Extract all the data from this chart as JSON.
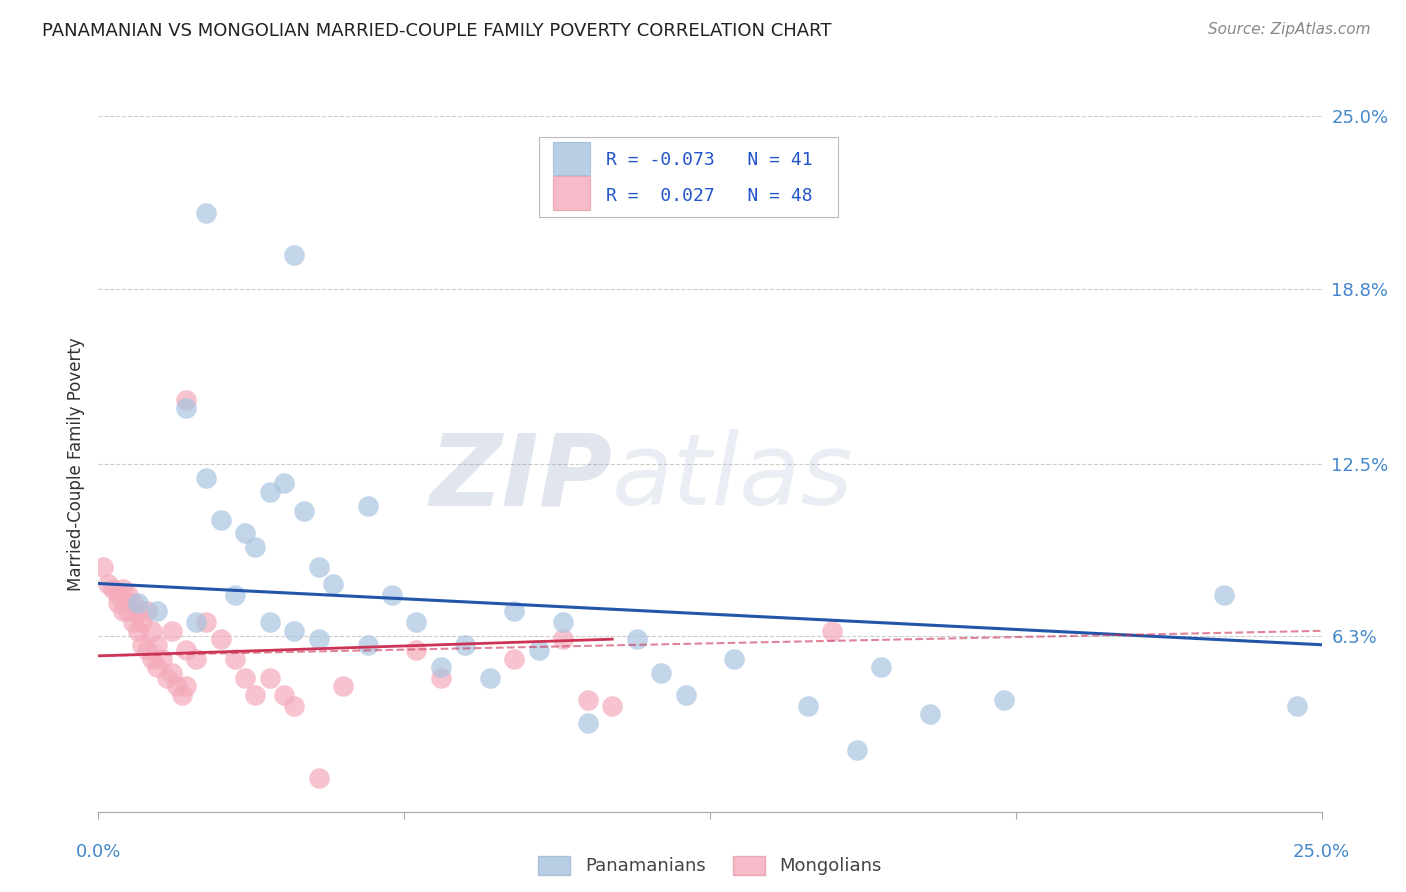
{
  "title": "PANAMANIAN VS MONGOLIAN MARRIED-COUPLE FAMILY POVERTY CORRELATION CHART",
  "source": "Source: ZipAtlas.com",
  "ylabel": "Married-Couple Family Poverty",
  "watermark_zip": "ZIP",
  "watermark_atlas": "atlas",
  "legend_blue_r": "-0.073",
  "legend_blue_n": "41",
  "legend_pink_r": "0.027",
  "legend_pink_n": "48",
  "blue_color": "#A8C4E0",
  "pink_color": "#F4AABB",
  "blue_line_color": "#2255AA",
  "pink_line_color": "#CC3355",
  "blue_scatter": [
    [
      0.022,
      0.215
    ],
    [
      0.04,
      0.2
    ],
    [
      0.018,
      0.145
    ],
    [
      0.022,
      0.12
    ],
    [
      0.035,
      0.115
    ],
    [
      0.038,
      0.118
    ],
    [
      0.025,
      0.105
    ],
    [
      0.03,
      0.1
    ],
    [
      0.032,
      0.095
    ],
    [
      0.042,
      0.108
    ],
    [
      0.055,
      0.11
    ],
    [
      0.045,
      0.088
    ],
    [
      0.048,
      0.082
    ],
    [
      0.008,
      0.075
    ],
    [
      0.012,
      0.072
    ],
    [
      0.02,
      0.068
    ],
    [
      0.028,
      0.078
    ],
    [
      0.06,
      0.078
    ],
    [
      0.085,
      0.072
    ],
    [
      0.035,
      0.068
    ],
    [
      0.04,
      0.065
    ],
    [
      0.065,
      0.068
    ],
    [
      0.045,
      0.062
    ],
    [
      0.055,
      0.06
    ],
    [
      0.075,
      0.06
    ],
    [
      0.09,
      0.058
    ],
    [
      0.095,
      0.068
    ],
    [
      0.11,
      0.062
    ],
    [
      0.07,
      0.052
    ],
    [
      0.08,
      0.048
    ],
    [
      0.115,
      0.05
    ],
    [
      0.12,
      0.042
    ],
    [
      0.13,
      0.055
    ],
    [
      0.145,
      0.038
    ],
    [
      0.155,
      0.022
    ],
    [
      0.16,
      0.052
    ],
    [
      0.17,
      0.035
    ],
    [
      0.185,
      0.04
    ],
    [
      0.23,
      0.078
    ],
    [
      0.245,
      0.038
    ],
    [
      0.1,
      0.032
    ]
  ],
  "pink_scatter": [
    [
      0.001,
      0.088
    ],
    [
      0.002,
      0.082
    ],
    [
      0.003,
      0.08
    ],
    [
      0.004,
      0.078
    ],
    [
      0.004,
      0.075
    ],
    [
      0.005,
      0.08
    ],
    [
      0.005,
      0.072
    ],
    [
      0.006,
      0.078
    ],
    [
      0.006,
      0.072
    ],
    [
      0.007,
      0.075
    ],
    [
      0.007,
      0.068
    ],
    [
      0.008,
      0.072
    ],
    [
      0.008,
      0.065
    ],
    [
      0.009,
      0.068
    ],
    [
      0.009,
      0.06
    ],
    [
      0.01,
      0.072
    ],
    [
      0.01,
      0.058
    ],
    [
      0.011,
      0.065
    ],
    [
      0.011,
      0.055
    ],
    [
      0.012,
      0.06
    ],
    [
      0.012,
      0.052
    ],
    [
      0.013,
      0.055
    ],
    [
      0.014,
      0.048
    ],
    [
      0.015,
      0.065
    ],
    [
      0.015,
      0.05
    ],
    [
      0.016,
      0.045
    ],
    [
      0.017,
      0.042
    ],
    [
      0.018,
      0.148
    ],
    [
      0.018,
      0.058
    ],
    [
      0.018,
      0.045
    ],
    [
      0.02,
      0.055
    ],
    [
      0.022,
      0.068
    ],
    [
      0.025,
      0.062
    ],
    [
      0.028,
      0.055
    ],
    [
      0.03,
      0.048
    ],
    [
      0.032,
      0.042
    ],
    [
      0.035,
      0.048
    ],
    [
      0.038,
      0.042
    ],
    [
      0.04,
      0.038
    ],
    [
      0.045,
      0.012
    ],
    [
      0.05,
      0.045
    ],
    [
      0.065,
      0.058
    ],
    [
      0.07,
      0.048
    ],
    [
      0.085,
      0.055
    ],
    [
      0.095,
      0.062
    ],
    [
      0.1,
      0.04
    ],
    [
      0.105,
      0.038
    ],
    [
      0.15,
      0.065
    ]
  ],
  "blue_line": [
    [
      0.0,
      0.082
    ],
    [
      0.25,
      0.06
    ]
  ],
  "pink_solid_line": [
    [
      0.0,
      0.056
    ],
    [
      0.105,
      0.062
    ]
  ],
  "pink_dashed_line": [
    [
      0.0,
      0.056
    ],
    [
      0.25,
      0.065
    ]
  ],
  "xlim": [
    0.0,
    0.25
  ],
  "ylim": [
    0.0,
    0.25
  ],
  "ytick_positions": [
    0.0,
    0.063,
    0.125,
    0.188,
    0.25
  ],
  "ytick_labels": [
    "",
    "6.3%",
    "12.5%",
    "18.8%",
    "25.0%"
  ],
  "background_color": "#FFFFFF",
  "grid_color": "#CCCCCC",
  "tick_color": "#4488CC",
  "label_color": "#333333"
}
